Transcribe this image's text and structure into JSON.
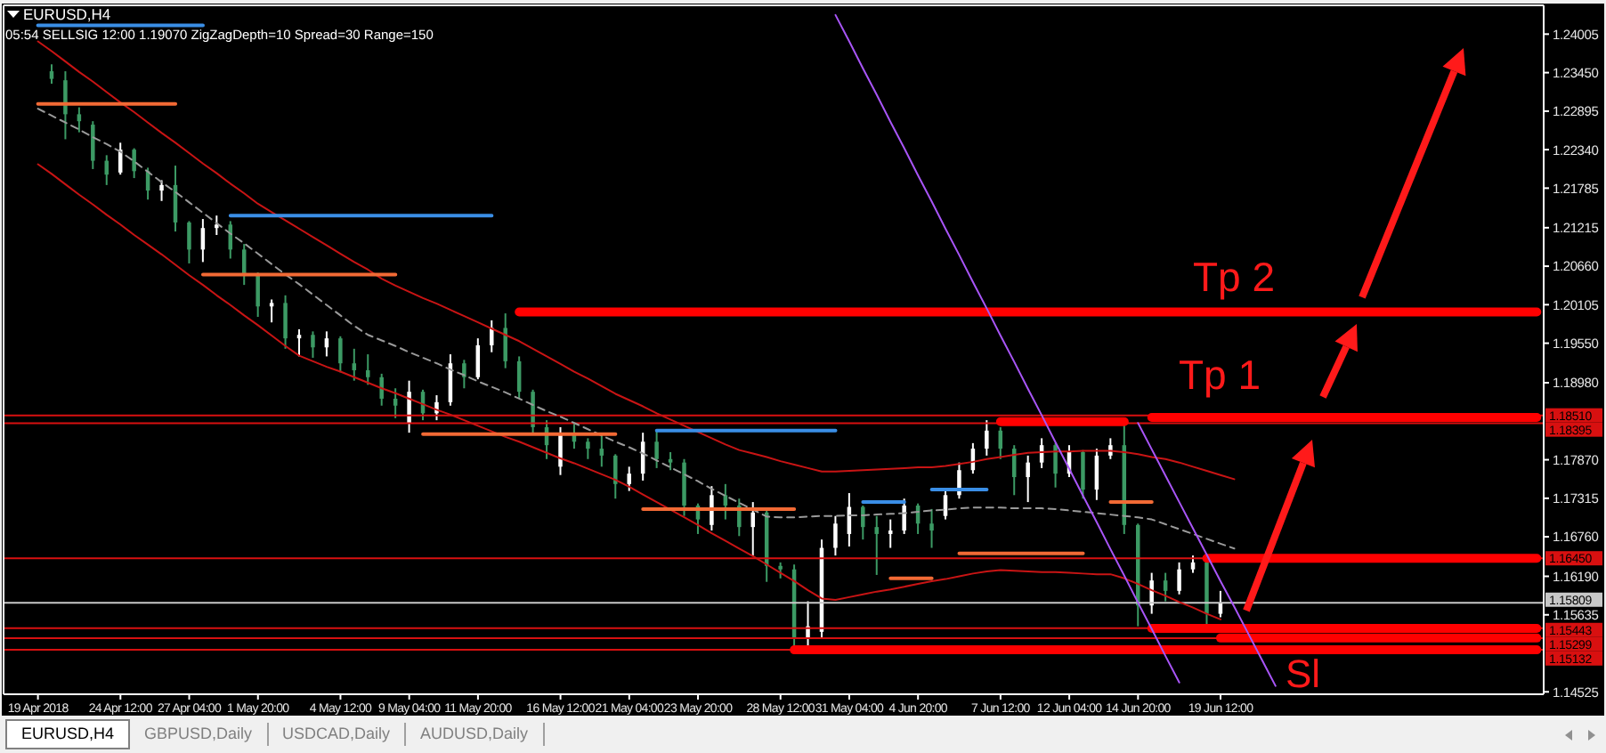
{
  "chart_data": {
    "type": "candlestick",
    "title": "EURUSD,H4",
    "subtitle": "05:54 SELLSIG 12:00 1.19070 ZigZagDepth=10 Spread=30 Range=150",
    "categories": [
      null,
      null,
      "19 Apr 2018",
      null,
      null,
      null,
      null,
      null,
      "24 Apr 12:00",
      null,
      null,
      null,
      null,
      "27 Apr 04:00",
      null,
      null,
      null,
      null,
      "1 May 20:00",
      null,
      null,
      null,
      null,
      null,
      "4 May 12:00",
      null,
      null,
      null,
      null,
      "9 May 04:00",
      null,
      null,
      null,
      null,
      "11 May 20:00",
      null,
      null,
      null,
      null,
      null,
      "16 May 12:00",
      null,
      null,
      null,
      null,
      "21 May 04:00",
      null,
      null,
      null,
      null,
      "23 May 20:00",
      null,
      null,
      null,
      null,
      null,
      "28 May 12:00",
      null,
      null,
      null,
      null,
      "31 May 04:00",
      null,
      null,
      null,
      null,
      "4 Jun 20:00",
      null,
      null,
      null,
      null,
      null,
      "7 Jun 12:00",
      null,
      null,
      null,
      null,
      "12 Jun 04:00",
      null,
      null,
      null,
      null,
      "14 Jun 20:00",
      null,
      null,
      null,
      null,
      null,
      "19 Jun 12:00",
      null,
      null,
      null,
      null,
      null,
      null,
      null,
      null,
      null,
      null,
      null,
      null,
      null,
      null,
      null,
      null,
      null,
      null,
      null,
      null,
      null,
      null,
      null
    ],
    "ohlc": [
      null,
      null,
      null,
      [
        1.2347,
        1.2357,
        1.2329,
        1.2336
      ],
      [
        1.2334,
        1.2347,
        1.2249,
        1.2285
      ],
      [
        1.2285,
        1.2295,
        1.2259,
        1.2275
      ],
      [
        1.227,
        1.2275,
        1.2206,
        1.2218
      ],
      [
        1.2218,
        1.2226,
        1.2183,
        1.2198
      ],
      [
        1.2201,
        1.2244,
        1.2198,
        1.2234
      ],
      [
        1.2234,
        1.2236,
        1.2193,
        1.2203
      ],
      [
        1.2203,
        1.2208,
        1.2162,
        1.2175
      ],
      [
        1.2175,
        1.219,
        1.216,
        1.2183
      ],
      [
        1.2183,
        1.2211,
        1.2116,
        1.2129
      ],
      [
        1.2129,
        1.2131,
        1.207,
        1.209
      ],
      [
        1.209,
        1.2134,
        1.2072,
        1.2121
      ],
      [
        1.2121,
        1.2139,
        1.2111,
        1.2126
      ],
      [
        1.2126,
        1.2131,
        1.2077,
        1.209
      ],
      [
        1.209,
        1.2098,
        1.2039,
        1.2052
      ],
      [
        1.2052,
        1.2057,
        1.1993,
        1.2008
      ],
      [
        1.2008,
        1.2018,
        1.1985,
        1.2013
      ],
      [
        1.2013,
        1.2024,
        1.1947,
        1.1962
      ],
      [
        1.1962,
        1.1975,
        1.1936,
        1.1967
      ],
      [
        1.1967,
        1.1972,
        1.1934,
        1.1949
      ],
      [
        1.1949,
        1.1972,
        1.1936,
        1.1962
      ],
      [
        1.1962,
        1.1965,
        1.1913,
        1.1926
      ],
      [
        1.1926,
        1.1947,
        1.1901,
        1.1916
      ],
      [
        1.1916,
        1.1939,
        1.1895,
        1.1906
      ],
      [
        1.1906,
        1.1911,
        1.1865,
        1.1875
      ],
      [
        1.1875,
        1.189,
        1.1847,
        1.1865
      ],
      [
        1.1839,
        1.1901,
        1.1826,
        1.1885
      ],
      [
        1.1885,
        1.1888,
        1.1844,
        1.1854
      ],
      [
        1.1854,
        1.188,
        1.1844,
        1.187
      ],
      [
        1.187,
        1.1939,
        1.1865,
        1.1926
      ],
      [
        1.1926,
        1.1931,
        1.189,
        1.1906
      ],
      [
        1.1906,
        1.1962,
        1.1903,
        1.1952
      ],
      [
        1.1952,
        1.1988,
        1.1942,
        1.1977
      ],
      [
        1.1977,
        1.1998,
        1.1919,
        1.1929
      ],
      [
        1.1929,
        1.1936,
        1.1875,
        1.1885
      ],
      [
        1.1885,
        1.1888,
        1.1824,
        1.1834
      ],
      [
        1.1834,
        1.1844,
        1.1788,
        1.1808
      ],
      [
        1.1777,
        1.1834,
        1.1765,
        1.1824
      ],
      [
        1.1824,
        1.1839,
        1.1803,
        1.1813
      ],
      [
        1.1813,
        1.1818,
        1.1788,
        1.1803
      ],
      [
        1.1803,
        1.1824,
        1.1777,
        1.1793
      ],
      [
        1.1793,
        1.1795,
        1.1731,
        1.1752
      ],
      [
        1.1752,
        1.1777,
        1.1742,
        1.1767
      ],
      [
        1.1767,
        1.1826,
        1.1757,
        1.1813
      ],
      [
        1.1813,
        1.1829,
        1.1775,
        1.1788
      ],
      [
        1.1788,
        1.1798,
        1.1772,
        1.1783
      ],
      [
        1.1783,
        1.1788,
        1.1706,
        1.1721
      ],
      [
        1.1721,
        1.1724,
        1.168,
        1.1701
      ],
      [
        1.1693,
        1.1749,
        1.1685,
        1.1736
      ],
      [
        1.1736,
        1.1752,
        1.1701,
        1.1721
      ],
      [
        1.1721,
        1.1731,
        1.1677,
        1.169
      ],
      [
        1.169,
        1.1726,
        1.1649,
        1.1711
      ],
      [
        1.1711,
        1.1716,
        1.1611,
        1.1634
      ],
      [
        1.1634,
        1.1639,
        1.1616,
        1.1629
      ],
      [
        1.1629,
        1.1636,
        1.1513,
        1.1531
      ],
      [
        1.1531,
        1.1583,
        1.1516,
        1.1547
      ],
      [
        1.1539,
        1.1672,
        1.1531,
        1.166
      ],
      [
        1.166,
        1.1706,
        1.1649,
        1.1695
      ],
      [
        1.168,
        1.1739,
        1.1662,
        1.1719
      ],
      [
        1.1719,
        1.1721,
        1.1672,
        1.169
      ],
      [
        1.169,
        1.1706,
        1.1621,
        1.168
      ],
      [
        1.168,
        1.1701,
        1.166,
        1.1685
      ],
      [
        1.1685,
        1.1731,
        1.168,
        1.1721
      ],
      [
        1.1721,
        1.1724,
        1.168,
        1.1695
      ],
      [
        1.1695,
        1.1716,
        1.166,
        1.1685
      ],
      [
        1.1706,
        1.1744,
        1.1701,
        1.1736
      ],
      [
        1.1736,
        1.1783,
        1.1731,
        1.1772
      ],
      [
        1.1772,
        1.1811,
        1.1767,
        1.1803
      ],
      [
        1.1803,
        1.1844,
        1.1793,
        1.1829
      ],
      [
        1.1829,
        1.1834,
        1.1788,
        1.1803
      ],
      [
        1.1803,
        1.1808,
        1.1736,
        1.1762
      ],
      [
        1.1762,
        1.1793,
        1.1726,
        1.1783
      ],
      [
        1.1783,
        1.1818,
        1.1775,
        1.1808
      ],
      [
        1.1808,
        1.1811,
        1.1747,
        1.1767
      ],
      [
        1.1767,
        1.1808,
        1.1762,
        1.1798
      ],
      [
        1.1798,
        1.1801,
        1.1731,
        1.1744
      ],
      [
        1.1744,
        1.1803,
        1.1729,
        1.1793
      ],
      [
        1.1793,
        1.1818,
        1.1788,
        1.1808
      ],
      [
        1.1808,
        1.1842,
        1.168,
        1.1693
      ],
      [
        1.1693,
        1.1695,
        1.1547,
        1.1577
      ],
      [
        1.1577,
        1.1624,
        1.1565,
        1.1613
      ],
      [
        1.1613,
        1.1624,
        1.1583,
        1.1598
      ],
      [
        1.1598,
        1.1639,
        1.1593,
        1.1629
      ],
      [
        1.1629,
        1.1649,
        1.1624,
        1.1639
      ],
      [
        1.1639,
        1.1644,
        1.1547,
        1.1565
      ],
      [
        1.1565,
        1.1598,
        1.156,
        1.1581
      ],
      null,
      null,
      null,
      null,
      null,
      null,
      null,
      null,
      null,
      null,
      null,
      null,
      null,
      null,
      null,
      null,
      null,
      null,
      null,
      null,
      null,
      null,
      null
    ],
    "colors": [
      null,
      null,
      null,
      "#3c9a64",
      "#3c9a64",
      "#3c9a64",
      "#3c9a64",
      "#3c9a64",
      "#ffffff",
      "#3c9a64",
      "#3c9a64",
      "#ffffff",
      "#3c9a64",
      "#3c9a64",
      "#ffffff",
      "#ffffff",
      "#3c9a64",
      "#3c9a64",
      "#3c9a64",
      "#ffffff",
      "#3c9a64",
      "#ffffff",
      "#3c9a64",
      "#ffffff",
      "#3c9a64",
      "#3c9a64",
      "#3c9a64",
      "#3c9a64",
      "#3c9a64",
      "#ffffff",
      "#3c9a64",
      "#ffffff",
      "#ffffff",
      "#3c9a64",
      "#ffffff",
      "#ffffff",
      "#3c9a64",
      "#3c9a64",
      "#3c9a64",
      "#3c9a64",
      "#ffffff",
      "#3c9a64",
      "#3c9a64",
      "#3c9a64",
      "#3c9a64",
      "#ffffff",
      "#ffffff",
      "#3c9a64",
      "#3c9a64",
      "#3c9a64",
      "#3c9a64",
      "#ffffff",
      "#3c9a64",
      "#3c9a64",
      "#ffffff",
      "#3c9a64",
      "#3c9a64",
      "#3c9a64",
      "#ffffff",
      "#ffffff",
      "#ffffff",
      "#ffffff",
      "#3c9a64",
      "#3c9a64",
      "#ffffff",
      "#ffffff",
      "#3c9a64",
      "#3c9a64",
      "#ffffff",
      "#ffffff",
      "#ffffff",
      "#ffffff",
      "#3c9a64",
      "#3c9a64",
      "#ffffff",
      "#ffffff",
      "#3c9a64",
      "#ffffff",
      "#3c9a64",
      "#ffffff",
      "#ffffff",
      "#3c9a64",
      "#3c9a64",
      "#ffffff",
      "#3c9a64",
      "#ffffff",
      "#ffffff",
      "#3c9a64",
      "#ffffff",
      null,
      null,
      null,
      null,
      null,
      null,
      null,
      null,
      null,
      null,
      null,
      null,
      null,
      null,
      null,
      null,
      null,
      null,
      null,
      null,
      null,
      null,
      null
    ],
    "ylim": [
      1.1449,
      1.2442
    ],
    "yticks": [
      1.24005,
      {
        "value": 1.2345,
        "label": "1.23450"
      },
      1.22895,
      {
        "value": 1.2234,
        "label": "1.22340"
      },
      1.21785,
      1.21215,
      {
        "value": 1.2066,
        "label": "1.20660"
      },
      1.20105,
      {
        "value": 1.1955,
        "label": "1.19550"
      },
      {
        "value": 1.1898,
        "label": "1.18980"
      },
      {
        "value": 1.1787,
        "label": "1.17870"
      },
      1.17315,
      {
        "value": 1.1676,
        "label": "1.16760"
      },
      {
        "value": 1.1619,
        "label": "1.16190"
      },
      1.15635,
      1.14525
    ],
    "series": [
      {
        "type": "line",
        "color": "#c81414",
        "values": [
          null,
          null,
          1.239,
          1.2376,
          1.2361,
          1.2346,
          1.2332,
          1.2317,
          1.2302,
          1.2288,
          1.2273,
          1.2258,
          1.2244,
          1.2229,
          1.2214,
          1.22,
          1.2185,
          1.2171,
          1.2156,
          1.2144,
          1.2132,
          1.212,
          1.2108,
          1.2096,
          1.2084,
          1.2072,
          1.2061,
          1.2048,
          1.2038,
          1.2029,
          1.202,
          1.2012,
          1.2003,
          1.1994,
          1.1985,
          1.1976,
          1.1967,
          1.1958,
          1.1947,
          1.1936,
          1.1925,
          1.1914,
          1.1904,
          1.1893,
          1.1882,
          1.1873,
          1.1864,
          1.1854,
          1.1845,
          1.1836,
          1.1827,
          1.1818,
          1.1809,
          1.1801,
          1.1796,
          1.1791,
          1.1785,
          1.178,
          1.1775,
          1.177,
          1.177,
          1.1771,
          1.1772,
          1.1773,
          1.1774,
          1.1775,
          1.1776,
          1.1776,
          1.1778,
          1.1781,
          1.1784,
          1.1788,
          1.1791,
          1.1794,
          1.1797,
          1.1798,
          1.1799,
          1.1799,
          1.18,
          1.18,
          1.18,
          1.1798,
          1.1795,
          1.1791,
          1.1788,
          1.1783,
          1.1777,
          1.1771,
          1.1765,
          1.1759,
          null,
          null,
          null,
          null,
          null,
          null,
          null,
          null,
          null,
          null,
          null,
          null,
          null,
          null,
          null,
          null,
          null,
          null,
          null,
          null,
          null,
          null
        ]
      },
      {
        "type": "line",
        "color": "#9a9a9a",
        "line_style": "dashed",
        "values": [
          null,
          null,
          1.2293,
          1.2283,
          1.2273,
          1.2263,
          1.2252,
          1.2242,
          1.2231,
          1.2217,
          1.2202,
          1.2187,
          1.2173,
          1.2158,
          1.2143,
          1.2128,
          1.2113,
          1.2099,
          1.2084,
          1.2069,
          1.2054,
          1.204,
          1.2025,
          1.201,
          1.1995,
          1.198,
          1.1967,
          1.1959,
          1.1951,
          1.1942,
          1.1934,
          1.1926,
          1.1917,
          1.1909,
          1.19,
          1.1892,
          1.1884,
          1.1875,
          1.1866,
          1.1857,
          1.1849,
          1.184,
          1.1831,
          1.1822,
          1.1813,
          1.1805,
          1.1796,
          1.1786,
          1.1776,
          1.1766,
          1.1756,
          1.1745,
          1.1735,
          1.1725,
          1.1715,
          1.1705,
          1.1704,
          1.1704,
          1.1705,
          1.1706,
          1.1706,
          1.1707,
          1.1707,
          1.1708,
          1.1709,
          1.171,
          1.1712,
          1.1714,
          1.1715,
          1.1717,
          1.1718,
          1.1718,
          1.1718,
          1.1717,
          1.1717,
          1.1717,
          1.1716,
          1.1714,
          1.1712,
          1.171,
          1.1708,
          1.1706,
          1.1704,
          1.1701,
          1.1694,
          1.1687,
          1.168,
          1.1673,
          1.1666,
          1.1659,
          null,
          null,
          null,
          null,
          null,
          null,
          null,
          null,
          null,
          null,
          null,
          null,
          null,
          null,
          null,
          null,
          null,
          null,
          null,
          null,
          null,
          null
        ]
      },
      {
        "type": "line",
        "color": "#c81414",
        "values": [
          null,
          null,
          1.2213,
          1.2199,
          1.2184,
          1.2169,
          1.2155,
          1.214,
          1.2126,
          1.2111,
          1.2097,
          1.2083,
          1.2068,
          1.2053,
          1.2039,
          1.2024,
          1.201,
          1.1995,
          1.1981,
          1.1966,
          1.1951,
          1.1937,
          1.1929,
          1.1921,
          1.1914,
          1.1906,
          1.1898,
          1.189,
          1.1883,
          1.1875,
          1.1867,
          1.1859,
          1.1852,
          1.1844,
          1.1836,
          1.1828,
          1.182,
          1.1813,
          1.1805,
          1.1797,
          1.1789,
          1.1782,
          1.1774,
          1.1766,
          1.1758,
          1.1748,
          1.1737,
          1.1726,
          1.1715,
          1.1704,
          1.1693,
          1.1681,
          1.167,
          1.1659,
          1.1648,
          1.1636,
          1.1624,
          1.1612,
          1.1599,
          1.1587,
          1.1585,
          1.1589,
          1.1593,
          1.1597,
          1.16,
          1.1604,
          1.1608,
          1.1612,
          1.1615,
          1.1619,
          1.1623,
          1.1626,
          1.1628,
          1.1627,
          1.1626,
          1.1625,
          1.1625,
          1.1624,
          1.1623,
          1.1622,
          1.1622,
          1.1616,
          1.1608,
          1.1599,
          1.1591,
          1.1582,
          1.1574,
          1.1565,
          1.1557,
          null,
          null,
          null,
          null,
          null,
          null,
          null,
          null,
          null,
          null,
          null,
          null,
          null,
          null,
          null,
          null,
          null,
          null,
          null,
          null,
          null,
          null,
          null
        ]
      },
      {
        "type": "line",
        "color": "#f26a35",
        "values": [
          null,
          null,
          1.23,
          1.23,
          1.23,
          1.23,
          1.23,
          1.23,
          1.23,
          1.23,
          1.23,
          1.23,
          1.23,
          null,
          1.2054,
          1.2054,
          1.2054,
          1.2054,
          1.2054,
          1.2054,
          1.2054,
          1.2054,
          1.2054,
          1.2054,
          1.2054,
          1.2054,
          1.2054,
          1.2054,
          1.2054,
          null,
          1.1824,
          1.1824,
          1.1824,
          1.1824,
          1.1824,
          1.1824,
          1.1824,
          1.1824,
          1.1824,
          1.1824,
          1.1824,
          1.1824,
          1.1824,
          1.1824,
          1.1824,
          null,
          1.1716,
          1.1716,
          1.1716,
          1.1716,
          1.1716,
          1.1716,
          1.1716,
          1.1716,
          1.1716,
          1.1716,
          1.1716,
          1.1716,
          null,
          null,
          null,
          null,
          null,
          null,
          1.1616,
          1.1616,
          1.1616,
          1.1616,
          null,
          1.1652,
          1.1652,
          1.1652,
          1.1652,
          1.1652,
          1.1652,
          1.1652,
          1.1652,
          1.1652,
          1.1652,
          null,
          1.1726,
          1.1726,
          1.1726,
          1.1726,
          null,
          null,
          null,
          null,
          null,
          null,
          null,
          null,
          null,
          null,
          null,
          null,
          null,
          null,
          null,
          null,
          null,
          null,
          null,
          null,
          null,
          null,
          null,
          null,
          null,
          null,
          null,
          null
        ]
      },
      {
        "type": "line",
        "color": "#3a8ee6",
        "values": [
          null,
          null,
          1.2413,
          1.2413,
          1.2413,
          1.2413,
          1.2413,
          1.2413,
          1.2413,
          1.2413,
          1.2413,
          1.2413,
          1.2413,
          1.2413,
          1.2413,
          null,
          1.2139,
          1.2139,
          1.2139,
          1.2139,
          1.2139,
          1.2139,
          1.2139,
          1.2139,
          1.2139,
          1.2139,
          1.2139,
          1.2139,
          1.2139,
          1.2139,
          1.2139,
          1.2139,
          1.2139,
          1.2139,
          1.2139,
          1.2139,
          null,
          null,
          null,
          null,
          null,
          null,
          null,
          null,
          null,
          null,
          null,
          1.1829,
          1.1829,
          1.1829,
          1.1829,
          1.1829,
          1.1829,
          1.1829,
          1.1829,
          1.1829,
          1.1829,
          1.1829,
          1.1829,
          1.1829,
          1.1829,
          null,
          1.1726,
          1.1726,
          1.1726,
          1.1726,
          null,
          1.1744,
          1.1744,
          1.1744,
          1.1744,
          1.1744,
          null,
          null,
          null,
          null,
          null,
          null,
          null,
          null,
          null,
          null,
          null,
          null,
          null,
          null,
          null,
          null,
          null,
          null,
          null,
          null,
          null,
          null,
          null,
          null,
          null,
          null,
          null,
          null,
          null,
          null,
          null,
          null,
          null,
          null,
          null,
          null,
          null,
          null,
          null,
          null
        ]
      },
      {
        "type": "line",
        "color": "#ff0000",
        "values": [
          null,
          null,
          null,
          null,
          null,
          null,
          null,
          null,
          null,
          null,
          null,
          null,
          null,
          null,
          null,
          null,
          null,
          null,
          null,
          null,
          null,
          null,
          null,
          null,
          null,
          null,
          null,
          null,
          null,
          null,
          null,
          null,
          null,
          null,
          null,
          null,
          null,
          1.2,
          1.2,
          1.2,
          1.2,
          1.2,
          1.2,
          1.2,
          1.2,
          1.2,
          1.2,
          1.2,
          1.2,
          1.2,
          1.2,
          1.2,
          1.2,
          1.2,
          1.2,
          1.2,
          1.2,
          1.2,
          1.2,
          1.2,
          1.2,
          1.2,
          1.2,
          1.2,
          1.2,
          1.2,
          1.2,
          1.2,
          1.2,
          1.2,
          1.2,
          1.2,
          1.2,
          1.2,
          1.2,
          1.2,
          1.2,
          1.2,
          1.2,
          1.2,
          1.2,
          1.2,
          1.2,
          1.2,
          1.2,
          1.2,
          1.2,
          1.2,
          1.2,
          1.2,
          1.2,
          1.2,
          1.2,
          1.2,
          1.2,
          1.2,
          1.2,
          1.2,
          1.2,
          1.2,
          1.2,
          1.2,
          1.2,
          1.2,
          1.2,
          1.2,
          1.2,
          1.2,
          1.2,
          1.2,
          1.2,
          1.2
        ]
      },
      {
        "type": "line",
        "color": "#ff0000",
        "values": [
          null,
          null,
          null,
          null,
          null,
          null,
          null,
          null,
          null,
          null,
          null,
          null,
          null,
          null,
          null,
          null,
          null,
          null,
          null,
          null,
          null,
          null,
          null,
          null,
          null,
          null,
          null,
          null,
          null,
          null,
          null,
          null,
          null,
          null,
          null,
          null,
          null,
          null,
          null,
          null,
          null,
          null,
          null,
          null,
          null,
          null,
          null,
          null,
          null,
          null,
          null,
          null,
          null,
          null,
          null,
          null,
          null,
          null,
          null,
          null,
          null,
          null,
          null,
          null,
          null,
          null,
          null,
          null,
          null,
          null,
          null,
          null,
          1.1842,
          1.1842,
          1.1842,
          1.1842,
          1.1842,
          1.1842,
          1.1842,
          1.1842,
          1.1842,
          1.1842,
          null,
          1.1848,
          1.1848,
          1.1848,
          1.1848,
          1.1848,
          1.1848,
          1.1848,
          1.1848,
          1.1848,
          1.1848,
          1.1848,
          1.1848,
          1.1848,
          1.1848,
          1.1848,
          1.1848,
          1.1848,
          1.1848,
          1.1848,
          1.1848,
          1.1848,
          1.1848,
          1.1848,
          1.1848,
          1.1848,
          1.1848,
          1.1848,
          1.1848,
          1.1848
        ]
      },
      {
        "type": "line",
        "color": "#ff0000",
        "values": [
          null,
          null,
          null,
          null,
          null,
          null,
          null,
          null,
          null,
          null,
          null,
          null,
          null,
          null,
          null,
          null,
          null,
          null,
          null,
          null,
          null,
          null,
          null,
          null,
          null,
          null,
          null,
          null,
          null,
          null,
          null,
          null,
          null,
          null,
          null,
          null,
          null,
          null,
          null,
          null,
          null,
          null,
          null,
          null,
          null,
          null,
          null,
          null,
          null,
          null,
          null,
          null,
          null,
          null,
          null,
          null,
          null,
          null,
          null,
          null,
          null,
          null,
          null,
          null,
          null,
          null,
          null,
          null,
          null,
          null,
          null,
          null,
          null,
          null,
          null,
          null,
          null,
          null,
          null,
          null,
          null,
          null,
          null,
          null,
          null,
          null,
          null,
          1.1645,
          1.1645,
          1.1645,
          1.1645,
          1.1645,
          1.1645,
          1.1645,
          1.1645,
          1.1645,
          1.1645,
          1.1645,
          1.1645,
          1.1645,
          1.1645,
          1.1645,
          1.1645,
          1.1645,
          1.1645,
          1.1645,
          1.1645,
          1.1645,
          1.1645,
          1.1645,
          1.1645,
          1.1645
        ]
      },
      {
        "type": "line",
        "color": "#ff0000",
        "values": [
          null,
          null,
          null,
          null,
          null,
          null,
          null,
          null,
          null,
          null,
          null,
          null,
          null,
          null,
          null,
          null,
          null,
          null,
          null,
          null,
          null,
          null,
          null,
          null,
          null,
          null,
          null,
          null,
          null,
          null,
          null,
          null,
          null,
          null,
          null,
          null,
          null,
          null,
          null,
          null,
          null,
          null,
          null,
          null,
          null,
          null,
          null,
          null,
          null,
          null,
          null,
          null,
          null,
          null,
          null,
          null,
          null,
          null,
          null,
          null,
          null,
          null,
          null,
          null,
          null,
          null,
          null,
          null,
          null,
          null,
          null,
          null,
          null,
          null,
          null,
          null,
          null,
          null,
          null,
          null,
          null,
          null,
          null,
          1.1544,
          1.1544,
          1.1544,
          1.1544,
          1.1544,
          1.1544,
          1.1544,
          1.1544,
          1.1544,
          1.1544,
          1.1544,
          1.1544,
          1.1544,
          1.1544,
          1.1544,
          1.1544,
          1.1544,
          1.1544,
          1.1544,
          1.1544,
          1.1544,
          1.1544,
          1.1544,
          1.1544,
          1.1544,
          1.1544,
          1.1544,
          1.1544,
          1.1544
        ]
      },
      {
        "type": "line",
        "color": "#ff0000",
        "values": [
          null,
          null,
          null,
          null,
          null,
          null,
          null,
          null,
          null,
          null,
          null,
          null,
          null,
          null,
          null,
          null,
          null,
          null,
          null,
          null,
          null,
          null,
          null,
          null,
          null,
          null,
          null,
          null,
          null,
          null,
          null,
          null,
          null,
          null,
          null,
          null,
          null,
          null,
          null,
          null,
          null,
          null,
          null,
          null,
          null,
          null,
          null,
          null,
          null,
          null,
          null,
          null,
          null,
          null,
          null,
          null,
          null,
          null,
          null,
          null,
          null,
          null,
          null,
          null,
          null,
          null,
          null,
          null,
          null,
          null,
          null,
          null,
          null,
          null,
          null,
          null,
          null,
          null,
          null,
          null,
          null,
          null,
          null,
          null,
          null,
          null,
          null,
          null,
          1.153,
          1.153,
          1.153,
          1.153,
          1.153,
          1.153,
          1.153,
          1.153,
          1.153,
          1.153,
          1.153,
          1.153,
          1.153,
          1.153,
          1.153,
          1.153,
          1.153,
          1.153,
          1.153,
          1.153,
          1.153,
          1.153,
          1.153,
          1.153
        ]
      },
      {
        "type": "line",
        "color": "#ff0000",
        "values": [
          null,
          null,
          null,
          null,
          null,
          null,
          null,
          null,
          null,
          null,
          null,
          null,
          null,
          null,
          null,
          null,
          null,
          null,
          null,
          null,
          null,
          null,
          null,
          null,
          null,
          null,
          null,
          null,
          null,
          null,
          null,
          null,
          null,
          null,
          null,
          null,
          null,
          null,
          null,
          null,
          null,
          null,
          null,
          null,
          null,
          null,
          null,
          null,
          null,
          null,
          null,
          null,
          null,
          null,
          null,
          null,
          null,
          1.1513,
          1.1513,
          1.1513,
          1.1513,
          1.1513,
          1.1513,
          1.1513,
          1.1513,
          1.1513,
          1.1513,
          1.1513,
          1.1513,
          1.1513,
          1.1513,
          1.1513,
          1.1513,
          1.1513,
          1.1513,
          1.1513,
          1.1513,
          1.1513,
          1.1513,
          1.1513,
          1.1513,
          1.1513,
          1.1513,
          1.1513,
          1.1513,
          1.1513,
          1.1513,
          1.1513,
          1.1513,
          1.1513,
          1.1513,
          1.1513,
          1.1513,
          1.1513,
          1.1513,
          1.1513,
          1.1513,
          1.1513,
          1.1513,
          1.1513,
          1.1513,
          1.1513,
          1.1513,
          1.1513,
          1.1513,
          1.1513,
          1.1513,
          1.1513,
          1.1513,
          1.1513,
          1.1513,
          1.1513
        ]
      },
      {
        "type": "line",
        "color": "#a855f7",
        "values": [
          null,
          null,
          null,
          null,
          null,
          null,
          null,
          null,
          null,
          null,
          null,
          null,
          null,
          null,
          null,
          null,
          null,
          null,
          null,
          null,
          null,
          null,
          null,
          null,
          null,
          null,
          null,
          null,
          null,
          null,
          null,
          null,
          null,
          null,
          null,
          null,
          null,
          null,
          null,
          null,
          null,
          null,
          null,
          null,
          null,
          null,
          null,
          null,
          null,
          null,
          null,
          null,
          null,
          null,
          null,
          null,
          null,
          null,
          null,
          null,
          1.2428,
          1.239,
          1.2351,
          1.2313,
          1.2274,
          1.2236,
          1.2197,
          1.2159,
          1.212,
          1.2082,
          1.2043,
          1.2005,
          1.1966,
          1.1928,
          1.1889,
          1.1851,
          1.1812,
          1.1774,
          1.1735,
          1.1697,
          1.1658,
          1.162,
          1.1581,
          1.1543,
          1.1504,
          1.1466,
          null,
          null,
          null,
          null,
          null,
          null,
          null,
          null,
          null,
          null,
          null,
          null,
          null,
          null,
          null,
          null,
          null,
          null,
          null,
          null,
          null,
          null,
          null,
          null,
          null,
          null
        ]
      },
      {
        "type": "line",
        "color": "#a855f7",
        "values": [
          null,
          null,
          null,
          null,
          null,
          null,
          null,
          null,
          null,
          null,
          null,
          null,
          null,
          null,
          null,
          null,
          null,
          null,
          null,
          null,
          null,
          null,
          null,
          null,
          null,
          null,
          null,
          null,
          null,
          null,
          null,
          null,
          null,
          null,
          null,
          null,
          null,
          null,
          null,
          null,
          null,
          null,
          null,
          null,
          null,
          null,
          null,
          null,
          null,
          null,
          null,
          null,
          null,
          null,
          null,
          null,
          null,
          null,
          null,
          null,
          null,
          null,
          null,
          null,
          null,
          null,
          null,
          null,
          null,
          null,
          null,
          null,
          null,
          null,
          null,
          null,
          null,
          null,
          null,
          null,
          null,
          null,
          1.184,
          1.1802,
          1.1764,
          1.1726,
          1.1688,
          1.165,
          1.1612,
          1.1575,
          1.1537,
          1.1499,
          1.1461,
          null,
          null,
          null,
          null,
          null,
          null,
          null,
          null,
          null,
          null,
          null,
          null,
          null,
          null,
          null,
          null,
          null,
          null,
          null
        ]
      }
    ],
    "ref_lines": [
      {
        "axis": "y",
        "value": 1.1851,
        "label": "1.18510",
        "color": "#d81010"
      },
      {
        "axis": "y",
        "value": 1.18395,
        "label": "1.18395",
        "color": "#d81010"
      },
      {
        "axis": "y",
        "value": 1.1645,
        "label": "1.16450",
        "color": "#d81010"
      },
      {
        "axis": "y",
        "value": 1.15809,
        "label": "1.15809",
        "color": "#c8c8c8"
      },
      {
        "axis": "y",
        "value": 1.15443,
        "label": "1.15443",
        "color": "#d81010"
      },
      {
        "axis": "y",
        "value": 1.15299,
        "label": "1.15299",
        "color": "#d81010"
      },
      {
        "axis": "y",
        "value": 1.15132,
        "label": "1.15132",
        "color": "#d81010"
      }
    ],
    "annotations": [
      "EURUSD,H4",
      "GBPUSD,Daily",
      "USDCAD,Daily",
      "AUDUSD,Daily",
      {
        "text": "Tp 2",
        "y": 1.2
      },
      {
        "text": "Tp 1",
        "y": 1.1848
      },
      {
        "text": "Sl",
        "y": 1.1513
      }
    ]
  }
}
